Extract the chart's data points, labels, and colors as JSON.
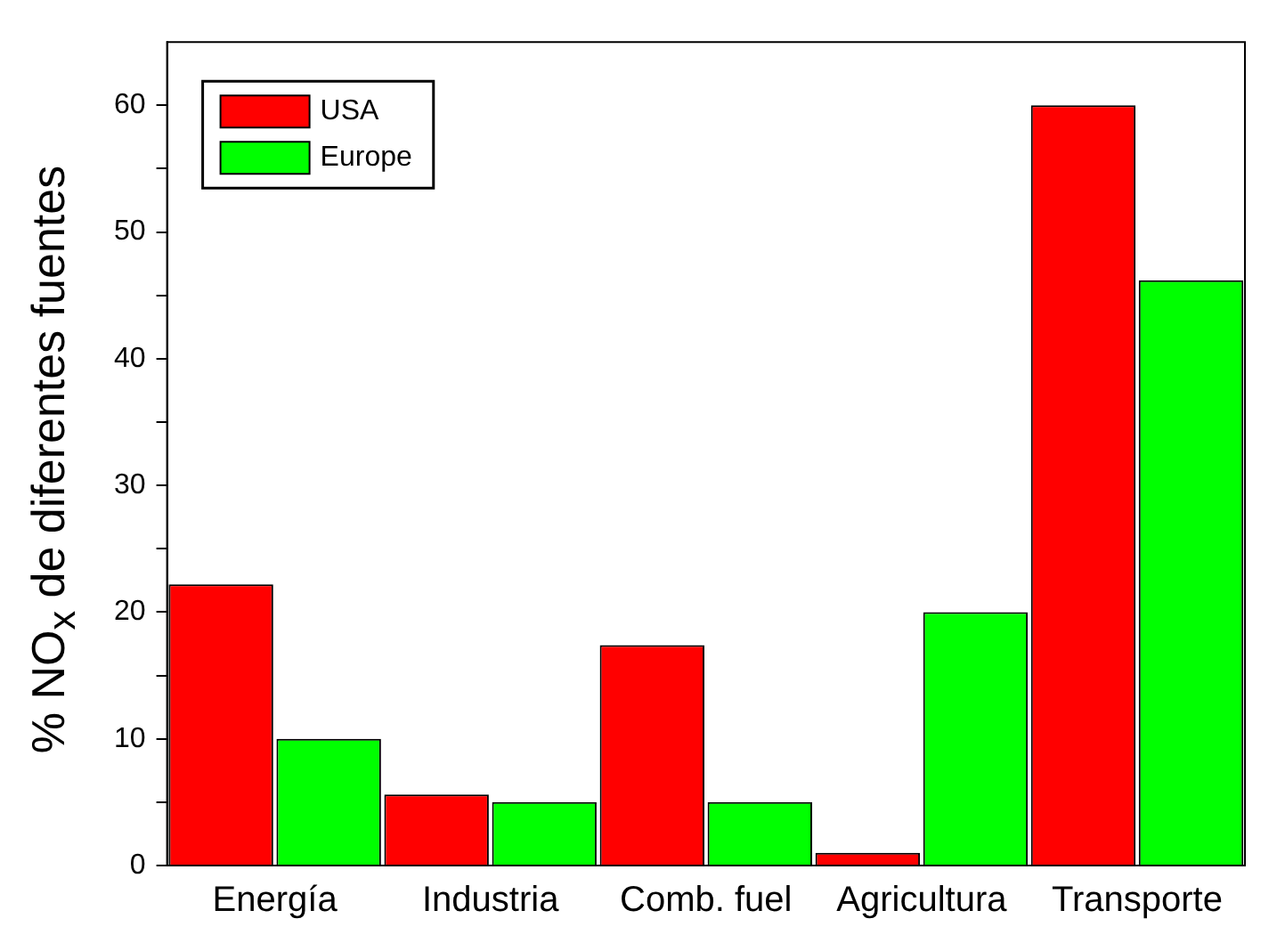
{
  "chart_data": {
    "type": "bar",
    "ylabel": "% NO$_{x}$ de diferentes fuentes",
    "categories": [
      "Energía",
      "Industria",
      "Comb. fuel",
      "Agricultura",
      "Transporte"
    ],
    "series": [
      {
        "name": "USA",
        "color": "#ff0000",
        "values": [
          22.2,
          5.6,
          17.4,
          1,
          60
        ]
      },
      {
        "name": "Europe",
        "color": "#00ff00",
        "values": [
          10,
          5,
          5,
          20,
          46.2
        ]
      }
    ],
    "ylim": [
      0,
      65
    ],
    "yticks": [
      0,
      {
        "value": 5,
        "label": null
      },
      10,
      {
        "value": 15,
        "label": null
      },
      20,
      {
        "value": 25,
        "label": null
      },
      30,
      {
        "value": 35,
        "label": null
      },
      40,
      {
        "value": 45,
        "label": null
      },
      50,
      {
        "value": 55,
        "label": null
      },
      60
    ],
    "grid": false,
    "legend": "top left"
  }
}
